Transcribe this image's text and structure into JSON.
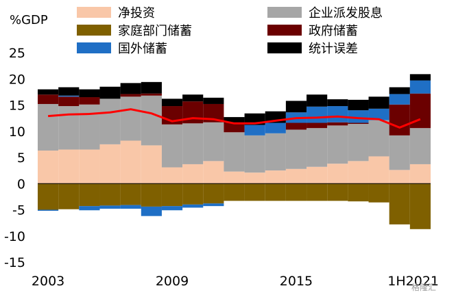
{
  "chart_data": {
    "type": "stacked-bar",
    "ylabel": "%GDP",
    "ylim": [
      -15,
      25
    ],
    "yticks": [
      -15,
      -10,
      -5,
      0,
      5,
      10,
      15,
      20,
      25
    ],
    "categories": [
      "2003",
      "2004",
      "2005",
      "2006",
      "2007",
      "2008",
      "2009",
      "2010",
      "2011",
      "2012",
      "2013",
      "2014",
      "2015",
      "2016",
      "2017",
      "2018",
      "2019",
      "2020",
      "1H2021"
    ],
    "x_tick_labels": [
      {
        "index": 0,
        "label": "2003"
      },
      {
        "index": 6,
        "label": "2009"
      },
      {
        "index": 12,
        "label": "2015"
      },
      {
        "index": 18,
        "label": "1H2021"
      }
    ],
    "series": [
      {
        "name": "净投资",
        "color": "#F9C7A8",
        "values": [
          6.3,
          6.5,
          6.5,
          7.5,
          8.2,
          7.3,
          3.1,
          3.7,
          4.3,
          2.3,
          2.1,
          2.5,
          2.8,
          3.2,
          3.8,
          4.3,
          5.2,
          2.6,
          3.7
        ]
      },
      {
        "name": "企业派发股息",
        "color": "#A6A6A6",
        "values": [
          8.9,
          8.3,
          8.6,
          8.7,
          8.4,
          9.5,
          8.2,
          7.8,
          7.4,
          7.5,
          7.1,
          7.1,
          7.5,
          7.4,
          7.3,
          7.1,
          6.9,
          6.6,
          6.9
        ]
      },
      {
        "name": "家庭部门储蓄",
        "color": "#7F6000",
        "values": [
          -5.0,
          -4.9,
          -4.3,
          -4.2,
          -4.1,
          -4.4,
          -4.3,
          -4.0,
          -3.8,
          -3.3,
          -3.3,
          -3.3,
          -3.3,
          -3.3,
          -3.3,
          -3.4,
          -3.6,
          -7.8,
          -8.7
        ]
      },
      {
        "name": "政府储蓄",
        "color": "#6B0000",
        "values": [
          1.8,
          1.8,
          1.4,
          0.0,
          0.5,
          0.4,
          3.5,
          4.2,
          3.5,
          1.8,
          0.0,
          0.0,
          1.3,
          1.0,
          0.6,
          0.2,
          0.0,
          5.9,
          6.6
        ]
      },
      {
        "name": "国外储蓄",
        "color": "#1F6FC5",
        "values": [
          -0.2,
          0.2,
          -0.8,
          -0.6,
          -0.7,
          -1.8,
          -0.8,
          -0.6,
          -0.5,
          0.0,
          2.0,
          2.0,
          2.0,
          3.1,
          3.1,
          2.4,
          2.2,
          2.0,
          2.5
        ]
      },
      {
        "name": "统计误差",
        "color": "#000000",
        "values": [
          1.0,
          1.6,
          1.5,
          2.3,
          2.1,
          2.2,
          1.4,
          1.3,
          1.2,
          1.1,
          2.2,
          2.2,
          2.2,
          2.3,
          1.3,
          2.0,
          2.3,
          1.3,
          1.2
        ]
      },
      {
        "name": "line",
        "type": "line",
        "color": "#FF0000",
        "values": [
          12.9,
          13.2,
          13.3,
          13.6,
          14.2,
          13.4,
          11.9,
          12.5,
          12.3,
          11.5,
          11.5,
          12.0,
          12.5,
          12.6,
          12.8,
          12.5,
          12.3,
          10.7,
          12.3
        ]
      }
    ],
    "legend": {
      "placement": "top",
      "columns": 2
    },
    "grid": false
  },
  "watermark": "格隆汇"
}
